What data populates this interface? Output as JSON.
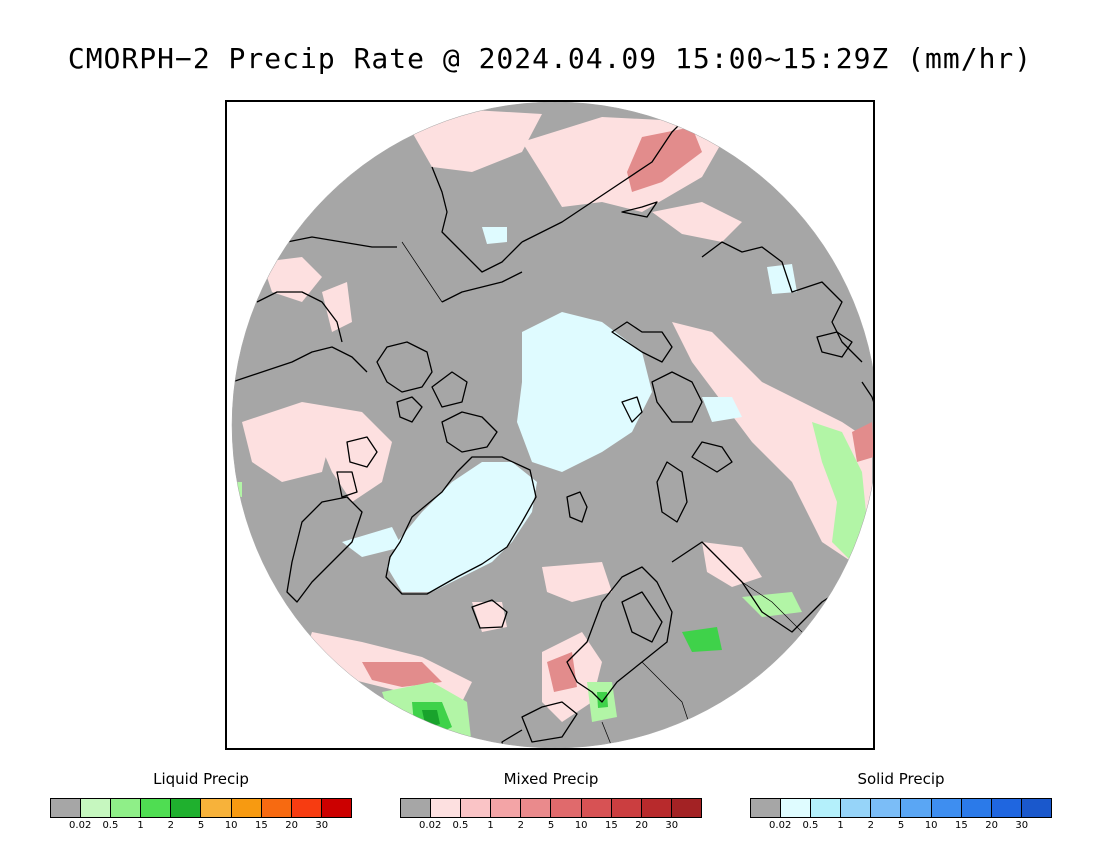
{
  "title": "CMORPH−2 Precip Rate @ 2024.04.09 15:00~15:29Z (mm/hr)",
  "map": {
    "projection": "north polar stereographic",
    "colors": {
      "no_precip": "#a6a6a6",
      "land_outline": "#000000",
      "mixed_light": "#fde0e0",
      "solid_light": "#dffbff",
      "liquid_light": "#b2f5a6",
      "liquid_mid": "#3fd24a",
      "liquid_dark": "#19a32c",
      "mixed_mid": "#e87f7f"
    }
  },
  "legends": [
    {
      "title": "Liquid Precip",
      "colors": [
        "#a6a6a6",
        "#c6f7bf",
        "#8fef88",
        "#4fdd52",
        "#1fb02e",
        "#f7b23a",
        "#f79a11",
        "#f76a11",
        "#f73c11",
        "#cc0000"
      ],
      "ticks": [
        "0.02",
        "0.5",
        "1",
        "2",
        "5",
        "10",
        "15",
        "20",
        "30"
      ]
    },
    {
      "title": "Mixed Precip",
      "colors": [
        "#a6a6a6",
        "#fde0e0",
        "#fac4c6",
        "#f3a4a6",
        "#ea8a8c",
        "#e06a6c",
        "#d75254",
        "#cb3e40",
        "#b82a2c",
        "#a32224"
      ],
      "ticks": [
        "0.02",
        "0.5",
        "1",
        "2",
        "5",
        "10",
        "15",
        "20",
        "30"
      ]
    },
    {
      "title": "Solid Precip",
      "colors": [
        "#a6a6a6",
        "#dffcff",
        "#b4f0fb",
        "#96d4f9",
        "#7bbdf7",
        "#5aa6f4",
        "#3e8ef0",
        "#2b7ae9",
        "#1f66e0",
        "#1a58cc"
      ],
      "ticks": [
        "0.02",
        "0.5",
        "1",
        "2",
        "5",
        "10",
        "15",
        "20",
        "30"
      ]
    }
  ]
}
